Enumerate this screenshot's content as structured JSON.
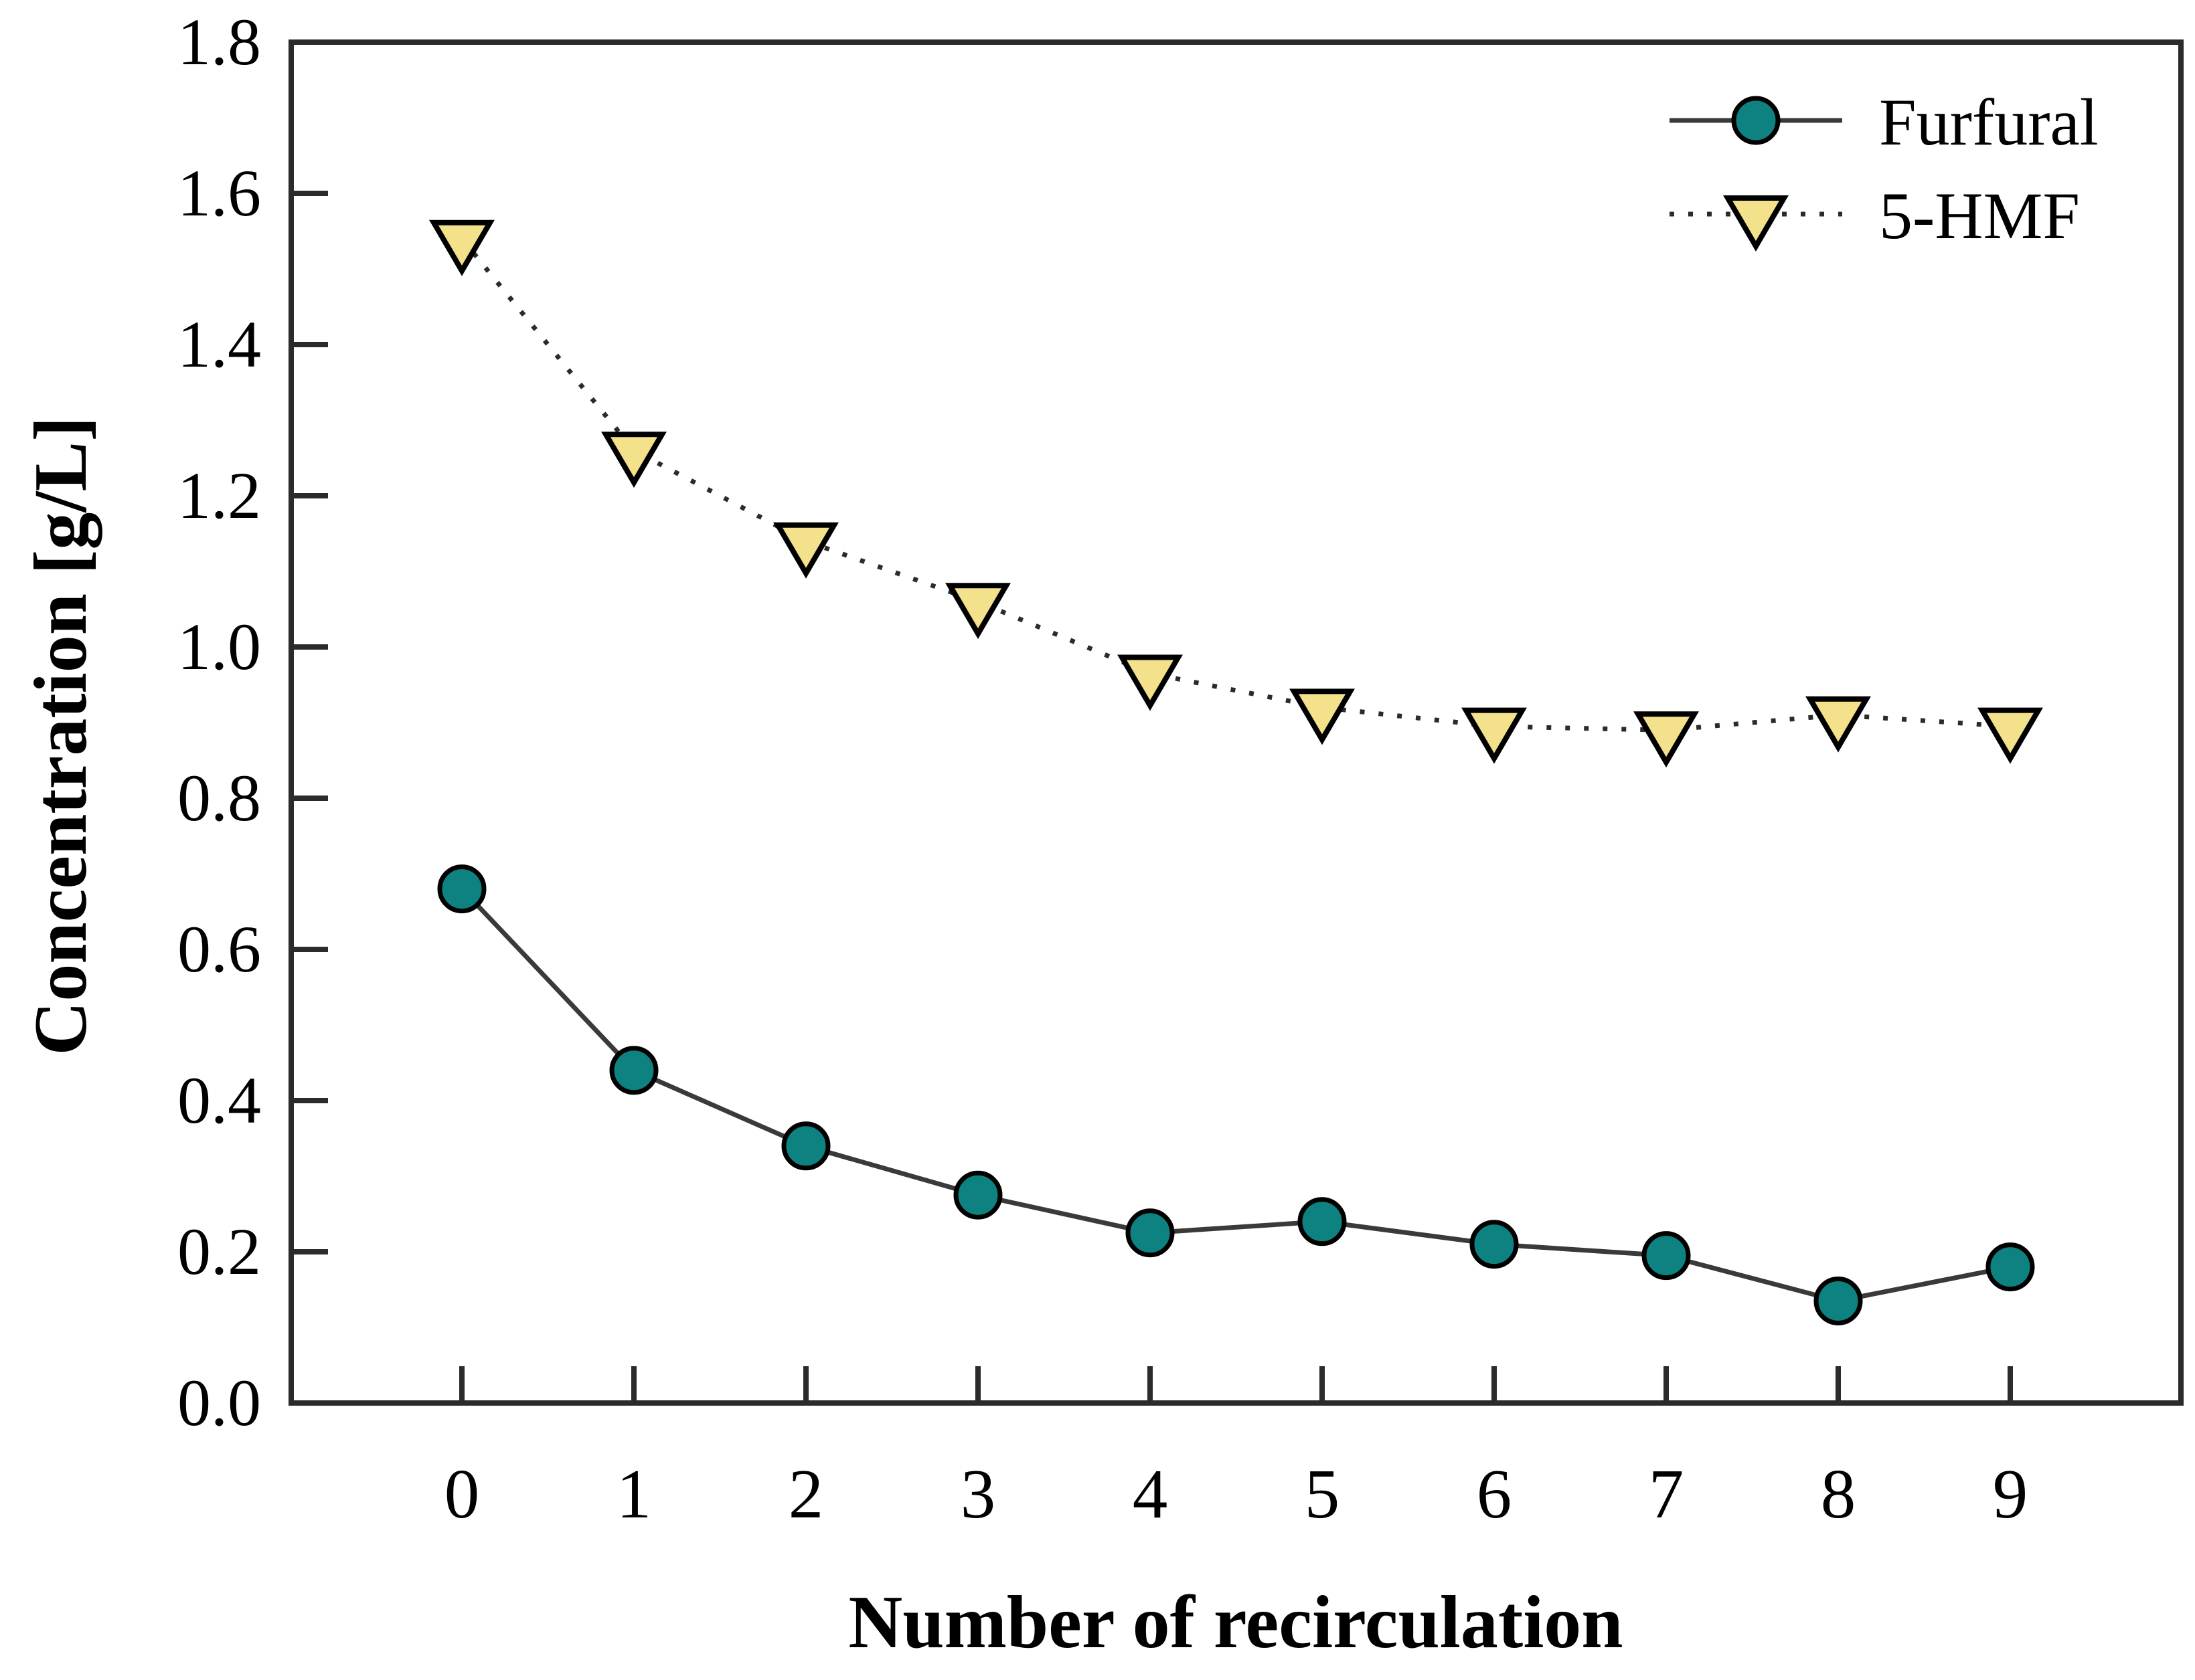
{
  "figure": {
    "background": "#ffffff",
    "frame_color": "#2b2b2b",
    "text_color": "#000000"
  },
  "chart_data": {
    "type": "line",
    "title": "",
    "xlabel": "Number of recirculation",
    "ylabel": "Concentration [g/L]",
    "x": [
      0,
      1,
      2,
      3,
      4,
      5,
      6,
      7,
      8,
      9
    ],
    "xtick_labels": [
      "0",
      "1",
      "2",
      "3",
      "4",
      "5",
      "6",
      "7",
      "8",
      "9"
    ],
    "ytick_labels": [
      "0.0",
      "0.2",
      "0.4",
      "0.6",
      "0.8",
      "1.0",
      "1.2",
      "1.4",
      "1.6",
      "1.8"
    ],
    "ytick_values": [
      0.0,
      0.2,
      0.4,
      0.6,
      0.8,
      1.0,
      1.2,
      1.4,
      1.6,
      1.8
    ],
    "xlim": [
      -1,
      10
    ],
    "ylim": [
      0.0,
      1.8
    ],
    "grid": false,
    "legend": {
      "position": "top-right",
      "entries": [
        "Furfural",
        "5-HMF"
      ]
    },
    "series": [
      {
        "name": "Furfural",
        "values": [
          0.68,
          0.44,
          0.34,
          0.275,
          0.225,
          0.24,
          0.21,
          0.195,
          0.135,
          0.18
        ],
        "marker": "circle",
        "marker_fill": "#0e8181",
        "marker_edge": "#000000",
        "line_style": "solid",
        "line_color": "#3a3a3a"
      },
      {
        "name": "5-HMF",
        "values": [
          1.54,
          1.26,
          1.14,
          1.06,
          0.965,
          0.92,
          0.895,
          0.89,
          0.91,
          0.895
        ],
        "marker": "triangle-down",
        "marker_fill": "#f3e18c",
        "marker_edge": "#000000",
        "line_style": "dotted",
        "line_color": "#2b2b2b"
      }
    ]
  }
}
